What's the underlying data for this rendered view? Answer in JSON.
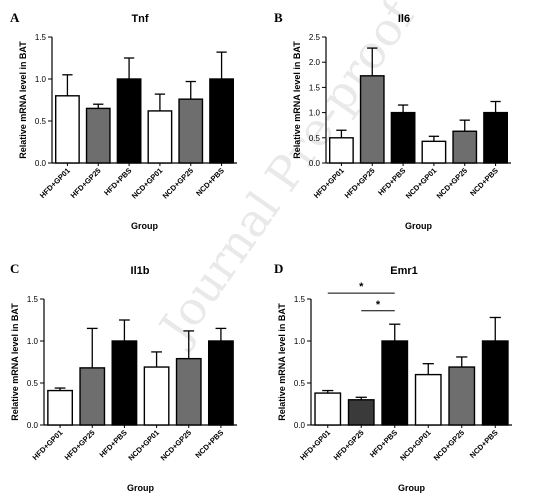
{
  "watermark": "Journal Pre-proof",
  "colors": {
    "white_bar": "#ffffff",
    "gray_bar": "#6e6e6e",
    "dark_gray_bar": "#3a3a3a",
    "black_bar": "#000000"
  },
  "chart_data": [
    {
      "panel": "A",
      "title": "Tnf",
      "type": "bar",
      "xlabel": "Group",
      "ylabel": "Relative mRNA level in BAT",
      "ylim": [
        0,
        1.5
      ],
      "yticks": [
        "0.0",
        "0.5",
        "1.0",
        "1.5"
      ],
      "categories": [
        "HFD+GP01",
        "HFD+GP25",
        "HFD+PBS",
        "NCD+GP01",
        "NCD+GP25",
        "NCD+PBS"
      ],
      "values": [
        0.8,
        0.65,
        1.0,
        0.62,
        0.76,
        1.0
      ],
      "errors": [
        0.25,
        0.05,
        0.25,
        0.2,
        0.21,
        0.32
      ],
      "fills": [
        "white",
        "gray",
        "black",
        "white",
        "gray",
        "black"
      ],
      "significance": []
    },
    {
      "panel": "B",
      "title": "Il6",
      "type": "bar",
      "xlabel": "Group",
      "ylabel": "Relative mRNA level in BAT",
      "ylim": [
        0,
        2.5
      ],
      "yticks": [
        "0.0",
        "0.5",
        "1.0",
        "1.5",
        "2.0",
        "2.5"
      ],
      "categories": [
        "HFD+GP01",
        "HFD+GP25",
        "HFD+PBS",
        "NCD+GP01",
        "NCD+GP25",
        "NCD+PBS"
      ],
      "values": [
        0.5,
        1.73,
        1.0,
        0.43,
        0.63,
        1.0
      ],
      "errors": [
        0.15,
        0.55,
        0.15,
        0.1,
        0.22,
        0.22
      ],
      "fills": [
        "white",
        "gray",
        "black",
        "white",
        "gray",
        "black"
      ],
      "significance": []
    },
    {
      "panel": "C",
      "title": "Il1b",
      "type": "bar",
      "xlabel": "Group",
      "ylabel": "Relative mRNA level in BAT",
      "ylim": [
        0,
        1.5
      ],
      "yticks": [
        "0.0",
        "0.5",
        "1.0",
        "1.5"
      ],
      "categories": [
        "HFD+GP01",
        "HFD+GP25",
        "HFD+PBS",
        "NCD+GP01",
        "NCD+GP25",
        "NCD+PBS"
      ],
      "values": [
        0.41,
        0.68,
        1.0,
        0.69,
        0.79,
        1.0
      ],
      "errors": [
        0.03,
        0.47,
        0.25,
        0.18,
        0.33,
        0.15
      ],
      "fills": [
        "white",
        "gray",
        "black",
        "white",
        "gray",
        "black"
      ],
      "significance": []
    },
    {
      "panel": "D",
      "title": "Emr1",
      "type": "bar",
      "xlabel": "Group",
      "ylabel": "Relative mRNA level in BAT",
      "ylim": [
        0,
        1.5
      ],
      "yticks": [
        "0.0",
        "0.5",
        "1.0",
        "1.5"
      ],
      "categories": [
        "HFD+GP01",
        "HFD+GP25",
        "HFD+PBS",
        "NCD+GP01",
        "NCD+GP25",
        "NCD+PBS"
      ],
      "values": [
        0.38,
        0.3,
        1.0,
        0.6,
        0.69,
        1.0
      ],
      "errors": [
        0.03,
        0.03,
        0.2,
        0.13,
        0.12,
        0.28
      ],
      "fills": [
        "white",
        "darkgray",
        "black",
        "white",
        "gray",
        "black"
      ],
      "significance": [
        {
          "from": 0,
          "to": 2,
          "label": "*",
          "y": 1.57
        },
        {
          "from": 1,
          "to": 2,
          "label": "*",
          "y": 1.36
        }
      ]
    }
  ]
}
